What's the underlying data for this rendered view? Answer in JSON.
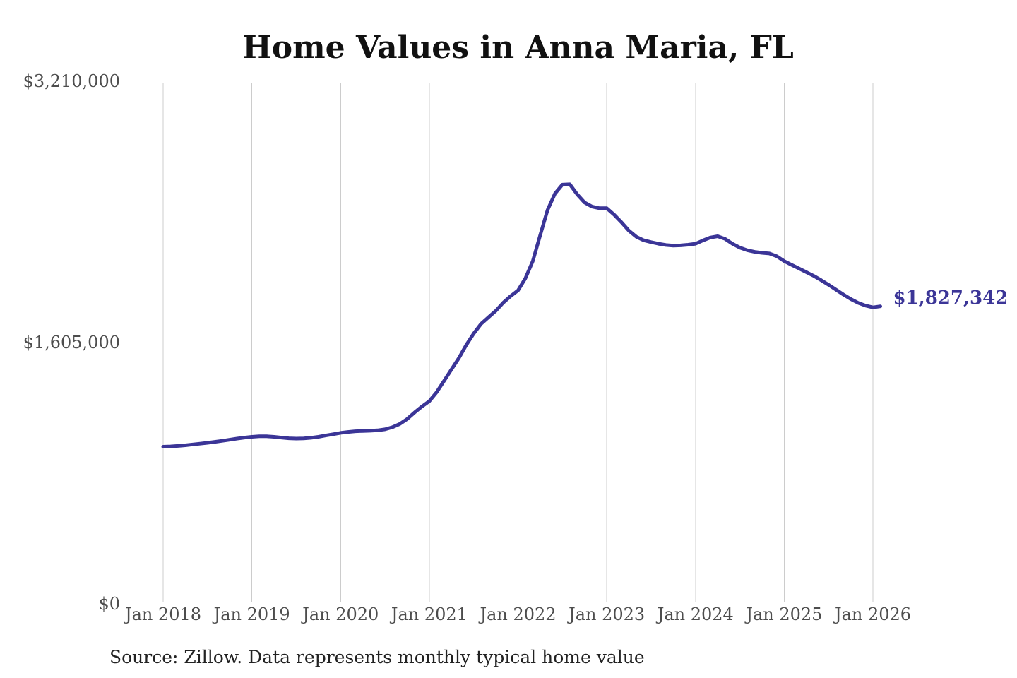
{
  "title": "Home Values in Anna Maria, FL",
  "source_note": "Source: Zillow. Data represents monthly typical home value",
  "annotation": {
    "label": "$1,827,342",
    "value": 1827342
  },
  "colors": {
    "line": "#3b3597",
    "grid": "#cccccc",
    "axis_text": "#4d4d4d",
    "title_text": "#111111",
    "annotation_text": "#3b3597",
    "background": "#ffffff"
  },
  "y_axis": {
    "ticks": [
      {
        "label": "$3,210,000",
        "value": 3210000
      },
      {
        "label": "$1,605,000",
        "value": 1605000
      },
      {
        "label": "$0",
        "value": 0
      }
    ]
  },
  "x_axis": {
    "ticks": [
      "Jan 2018",
      "Jan 2019",
      "Jan 2020",
      "Jan 2021",
      "Jan 2022",
      "Jan 2023",
      "Jan 2024",
      "Jan 2025",
      "Jan 2026"
    ]
  },
  "chart_data": {
    "type": "line",
    "title": "Home Values in Anna Maria, FL",
    "xlabel": "",
    "ylabel": "",
    "ylim": [
      0,
      3210000
    ],
    "yticks": [
      0,
      1605000,
      3210000
    ],
    "ytick_labels": [
      "$0",
      "$1,605,000",
      "$3,210,000"
    ],
    "xtick_labels": [
      "Jan 2018",
      "Jan 2019",
      "Jan 2020",
      "Jan 2021",
      "Jan 2022",
      "Jan 2023",
      "Jan 2024",
      "Jan 2025",
      "Jan 2026"
    ],
    "grid": "vertical-only",
    "legend": "none",
    "line_color": "#3b3597",
    "last_point_label": "$1,827,342",
    "x": [
      "Jan 2018",
      "Feb 2018",
      "Mar 2018",
      "Apr 2018",
      "May 2018",
      "Jun 2018",
      "Jul 2018",
      "Aug 2018",
      "Sep 2018",
      "Oct 2018",
      "Nov 2018",
      "Dec 2018",
      "Jan 2019",
      "Feb 2019",
      "Mar 2019",
      "Apr 2019",
      "May 2019",
      "Jun 2019",
      "Jul 2019",
      "Aug 2019",
      "Sep 2019",
      "Oct 2019",
      "Nov 2019",
      "Dec 2019",
      "Jan 2020",
      "Feb 2020",
      "Mar 2020",
      "Apr 2020",
      "May 2020",
      "Jun 2020",
      "Jul 2020",
      "Aug 2020",
      "Sep 2020",
      "Oct 2020",
      "Nov 2020",
      "Dec 2020",
      "Jan 2021",
      "Feb 2021",
      "Mar 2021",
      "Apr 2021",
      "May 2021",
      "Jun 2021",
      "Jul 2021",
      "Aug 2021",
      "Sep 2021",
      "Oct 2021",
      "Nov 2021",
      "Dec 2021",
      "Jan 2022",
      "Feb 2022",
      "Mar 2022",
      "Apr 2022",
      "May 2022",
      "Jun 2022",
      "Jul 2022",
      "Aug 2022",
      "Sep 2022",
      "Oct 2022",
      "Nov 2022",
      "Dec 2022",
      "Jan 2023",
      "Feb 2023",
      "Mar 2023",
      "Apr 2023",
      "May 2023",
      "Jun 2023",
      "Jul 2023",
      "Aug 2023",
      "Sep 2023",
      "Oct 2023",
      "Nov 2023",
      "Dec 2023",
      "Jan 2024",
      "Feb 2024",
      "Mar 2024",
      "Apr 2024",
      "May 2024",
      "Jun 2024",
      "Jul 2024",
      "Aug 2024",
      "Sep 2024",
      "Oct 2024",
      "Nov 2024",
      "Dec 2024",
      "Jan 2025",
      "Feb 2025",
      "Mar 2025",
      "Apr 2025",
      "May 2025",
      "Jun 2025",
      "Jul 2025",
      "Aug 2025",
      "Sep 2025",
      "Oct 2025",
      "Nov 2025",
      "Dec 2025",
      "Jan 2026",
      "Feb 2026"
    ],
    "values": [
      965000,
      967000,
      970000,
      974000,
      979000,
      984000,
      989000,
      995000,
      1001000,
      1008000,
      1015000,
      1021000,
      1026000,
      1029000,
      1029000,
      1026000,
      1021000,
      1017000,
      1015000,
      1016000,
      1020000,
      1026000,
      1034000,
      1042000,
      1050000,
      1056000,
      1060000,
      1062000,
      1063000,
      1066000,
      1072000,
      1085000,
      1105000,
      1135000,
      1175000,
      1212000,
      1245000,
      1300000,
      1370000,
      1440000,
      1510000,
      1590000,
      1660000,
      1720000,
      1760000,
      1800000,
      1850000,
      1890000,
      1925000,
      2000000,
      2105000,
      2265000,
      2420000,
      2520000,
      2575000,
      2577000,
      2515000,
      2465000,
      2440000,
      2430000,
      2430000,
      2390000,
      2343000,
      2292000,
      2255000,
      2233000,
      2222000,
      2212000,
      2204000,
      2200000,
      2202000,
      2206000,
      2212000,
      2232000,
      2250000,
      2258000,
      2242000,
      2212000,
      2188000,
      2172000,
      2162000,
      2156000,
      2152000,
      2135000,
      2105000,
      2082000,
      2060000,
      2037000,
      2014000,
      1988000,
      1960000,
      1930000,
      1900000,
      1872000,
      1849000,
      1832000,
      1821000,
      1827342
    ]
  }
}
